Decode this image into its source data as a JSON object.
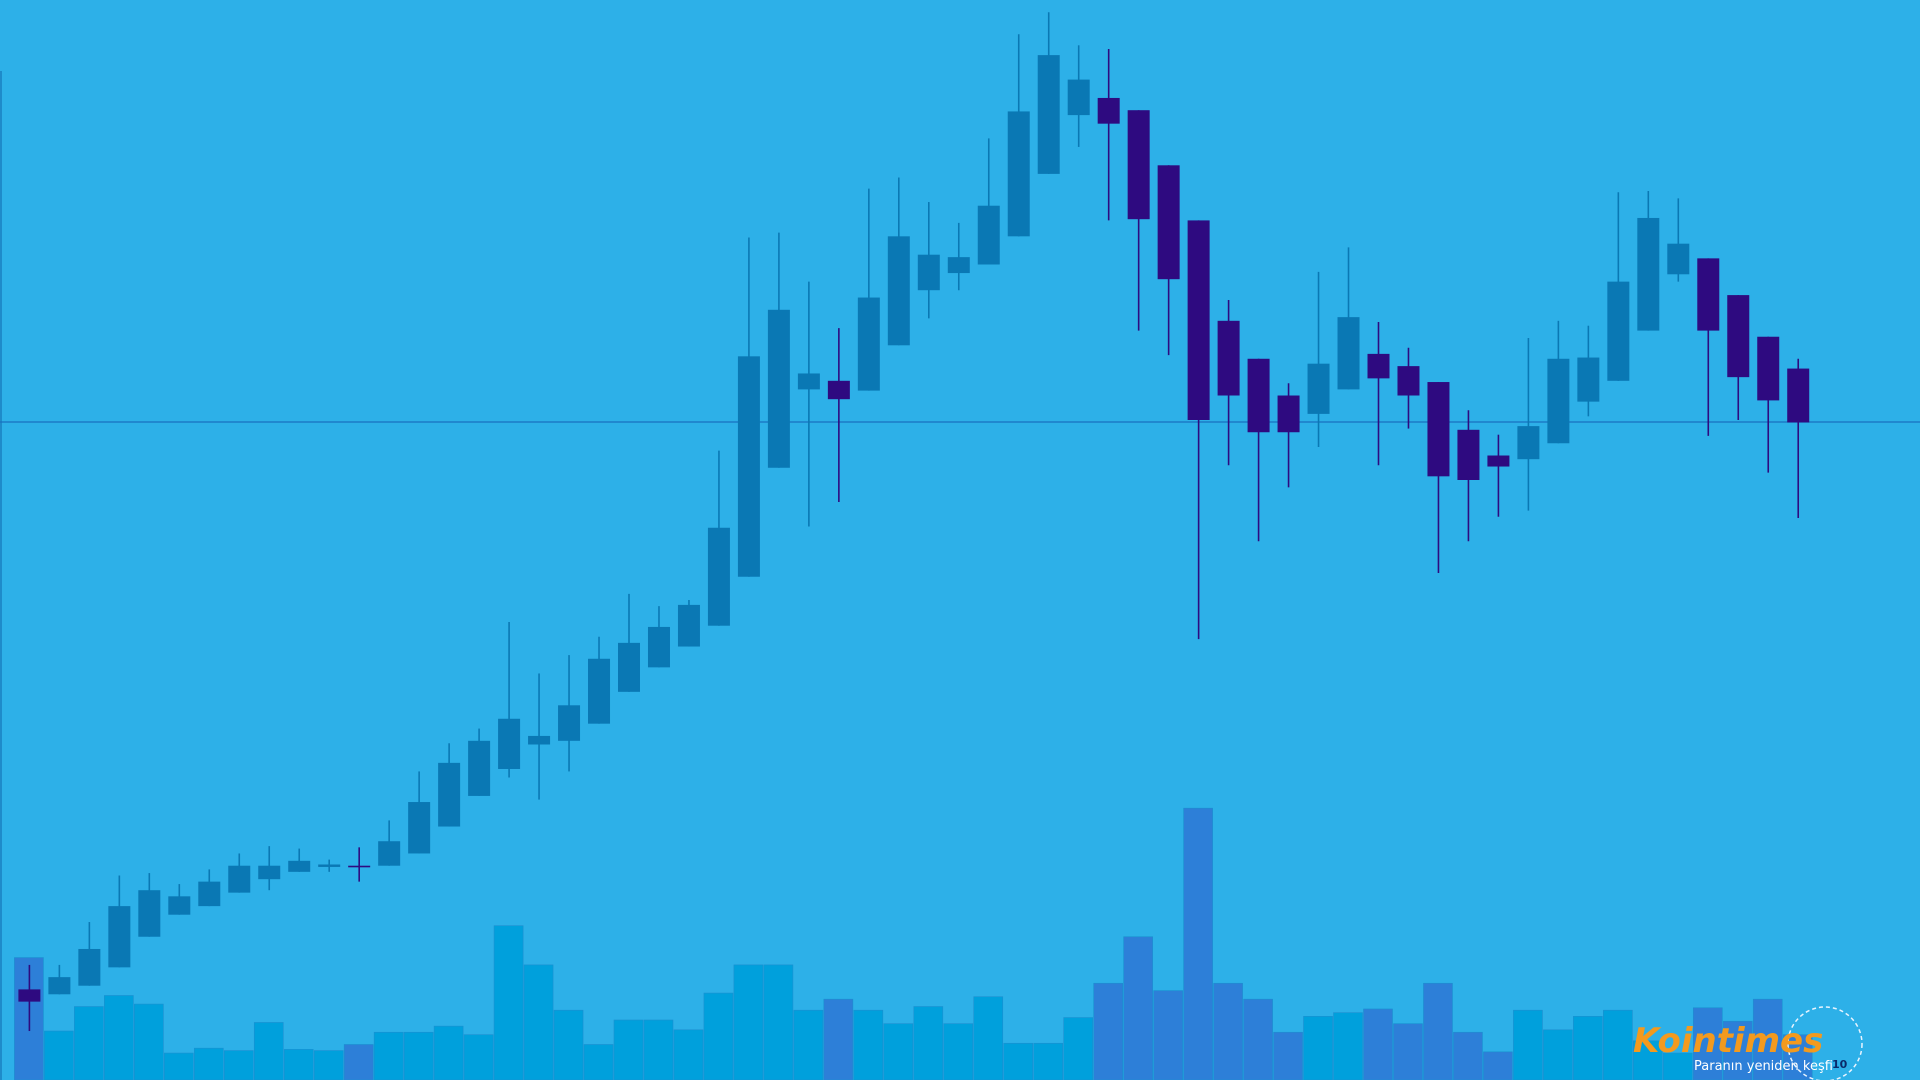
{
  "chart_data": {
    "type": "candlestick",
    "open": [
      74,
      70,
      77,
      92,
      117,
      135,
      142,
      153,
      164,
      170,
      174,
      175,
      175,
      185,
      207,
      232,
      254,
      274,
      277,
      291,
      317,
      337,
      354,
      371,
      411,
      500,
      564,
      571,
      563,
      600,
      645,
      659,
      666,
      689,
      740,
      788,
      802,
      792,
      747,
      702,
      620,
      589,
      559,
      544,
      564,
      593,
      583,
      570,
      531,
      510,
      507,
      520,
      554,
      571,
      612,
      658,
      671,
      641,
      607,
      581
    ],
    "high": [
      94,
      94,
      129,
      167,
      169,
      160,
      172,
      185,
      191,
      189,
      180,
      190,
      212,
      252,
      275,
      287,
      374,
      332,
      347,
      362,
      397,
      387,
      392,
      514,
      688,
      692,
      652,
      614,
      728,
      737,
      717,
      700,
      769,
      854,
      872,
      845,
      842,
      792,
      747,
      702,
      637,
      589,
      569,
      660,
      680,
      619,
      598,
      570,
      547,
      527,
      606,
      620,
      616,
      725,
      726,
      720,
      671,
      641,
      607,
      589
    ],
    "low": [
      40,
      70,
      77,
      92,
      117,
      135,
      142,
      153,
      155,
      170,
      170,
      162,
      175,
      185,
      207,
      232,
      247,
      229,
      252,
      291,
      317,
      337,
      354,
      371,
      411,
      500,
      452,
      472,
      563,
      600,
      622,
      645,
      666,
      689,
      740,
      762,
      702,
      612,
      592,
      360,
      502,
      440,
      484,
      517,
      564,
      502,
      532,
      414,
      440,
      460,
      465,
      520,
      542,
      571,
      612,
      652,
      526,
      539,
      496,
      459
    ],
    "close": [
      64,
      84,
      107,
      142,
      155,
      150,
      162,
      175,
      175,
      179,
      176,
      175,
      195,
      227,
      259,
      277,
      295,
      281,
      306,
      344,
      357,
      370,
      388,
      451,
      591,
      629,
      577,
      556,
      639,
      689,
      674,
      672,
      714,
      791,
      837,
      817,
      781,
      703,
      654,
      539,
      559,
      529,
      529,
      585,
      623,
      573,
      559,
      493,
      490,
      501,
      534,
      589,
      590,
      652,
      704,
      683,
      612,
      574,
      555,
      537
    ],
    "volume": [
      100,
      40,
      60,
      69,
      62,
      22,
      26,
      24,
      47,
      25,
      24,
      29,
      39,
      39,
      44,
      37,
      126,
      94,
      57,
      29,
      49,
      49,
      41,
      71,
      94,
      94,
      57,
      66,
      57,
      46,
      60,
      46,
      68,
      30,
      30,
      51,
      79,
      117,
      73,
      222,
      79,
      66,
      39,
      52,
      55,
      58,
      46,
      79,
      39,
      23,
      57,
      41,
      52,
      57,
      32,
      22,
      59,
      48,
      66,
      37
    ],
    "ylim": [
      0,
      882
    ],
    "y2lim": [
      0,
      882
    ],
    "up_color": "#0a78b4",
    "down_color": "#2e0a80",
    "volume_up_color": "#00a0dc",
    "volume_down_color": "#2d7fd8"
  },
  "logo": {
    "name": "Kointimes",
    "tagline": "Paranın yeniden keşfi",
    "badge": "10"
  }
}
